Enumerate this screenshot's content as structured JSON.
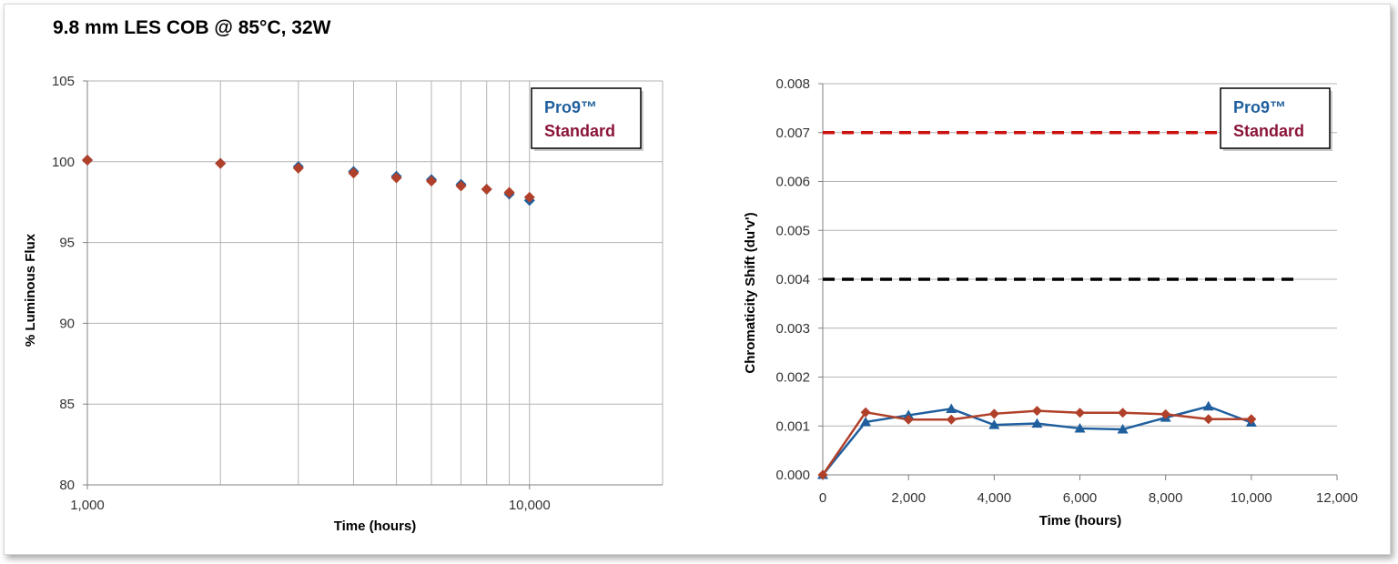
{
  "page_title": "9.8 mm LES COB @ 85°C, 32W",
  "colors": {
    "pro9": "#1f5f9e",
    "standard": "#b0402a",
    "pro9_legend": "#1f5f9e",
    "standard_legend": "#8b1538",
    "red_dashed_line": "#cc1111",
    "black_dashed_line": "#000000",
    "grid": "#b3b3b3"
  },
  "chart_data": [
    {
      "type": "scatter",
      "xscale": "log",
      "xlabel": "Time (hours)",
      "ylabel": "% Luminous Flux",
      "xlim": [
        1000,
        20000
      ],
      "ylim": [
        80,
        105
      ],
      "x_tick_labels": [
        "1,000",
        "10,000"
      ],
      "y_ticks": [
        80,
        85,
        90,
        95,
        100,
        105
      ],
      "grid": true,
      "legend": {
        "position": "top-right",
        "entries": [
          "Pro9™",
          "Standard"
        ]
      },
      "series": [
        {
          "name": "Pro9™",
          "marker": "diamond",
          "x": [
            1000,
            2000,
            3000,
            4000,
            5000,
            6000,
            7000,
            8000,
            9000,
            10000
          ],
          "y": [
            100.1,
            99.9,
            99.7,
            99.4,
            99.1,
            98.9,
            98.6,
            98.3,
            98.0,
            97.6
          ]
        },
        {
          "name": "Standard",
          "marker": "diamond",
          "x": [
            1000,
            2000,
            3000,
            4000,
            5000,
            6000,
            7000,
            8000,
            9000,
            10000
          ],
          "y": [
            100.1,
            99.9,
            99.6,
            99.3,
            99.0,
            98.8,
            98.5,
            98.3,
            98.1,
            97.8
          ]
        }
      ]
    },
    {
      "type": "line",
      "xlabel": "Time (hours)",
      "ylabel": "Chromaticity Shift (du'v')",
      "xlim": [
        0,
        12000
      ],
      "ylim": [
        0,
        0.008
      ],
      "x_ticks": [
        0,
        2000,
        4000,
        6000,
        8000,
        10000,
        12000
      ],
      "x_tick_labels": [
        "0",
        "2,000",
        "4,000",
        "6,000",
        "8,000",
        "10,000",
        "12,000"
      ],
      "y_tick_labels": [
        "0.000",
        "0.001",
        "0.002",
        "0.003",
        "0.004",
        "0.005",
        "0.006",
        "0.007",
        "0.008"
      ],
      "grid": true,
      "legend": {
        "position": "top-right",
        "entries": [
          "Pro9™",
          "Standard"
        ]
      },
      "reference_lines": [
        {
          "y": 0.007,
          "style": "dashed",
          "color": "red",
          "x_range": [
            0,
            11000
          ]
        },
        {
          "y": 0.004,
          "style": "dashed",
          "color": "black",
          "x_range": [
            0,
            11000
          ]
        }
      ],
      "series": [
        {
          "name": "Pro9™",
          "marker": "triangle",
          "x": [
            0,
            1000,
            2000,
            3000,
            4000,
            5000,
            6000,
            7000,
            8000,
            9000,
            10000
          ],
          "y": [
            0.0,
            0.00108,
            0.00122,
            0.00135,
            0.00102,
            0.00105,
            0.00095,
            0.00093,
            0.00117,
            0.0014,
            0.00107
          ]
        },
        {
          "name": "Standard",
          "marker": "diamond",
          "x": [
            0,
            1000,
            2000,
            3000,
            4000,
            5000,
            6000,
            7000,
            8000,
            9000,
            10000
          ],
          "y": [
            0.0,
            0.00128,
            0.00113,
            0.00113,
            0.00125,
            0.00131,
            0.00127,
            0.00127,
            0.00124,
            0.00114,
            0.00114
          ]
        }
      ]
    }
  ]
}
